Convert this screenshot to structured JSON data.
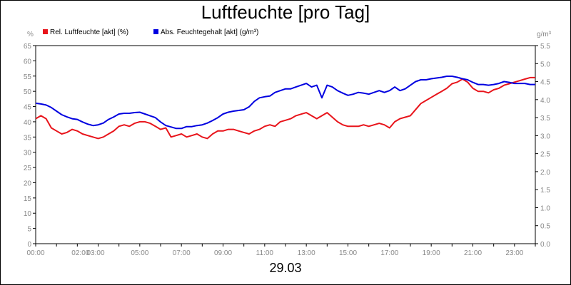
{
  "chart_data": {
    "type": "line",
    "title": "Luftfeuchte [pro Tag]",
    "date_label": "29.03",
    "y_unit_left": "%",
    "y_unit_right": "g/m³",
    "ylim_left": [
      0,
      65
    ],
    "ylim_right": [
      0,
      5.5
    ],
    "y_ticks_left": [
      "0",
      "5",
      "10",
      "15",
      "20",
      "25",
      "30",
      "35",
      "40",
      "45",
      "50",
      "55",
      "60",
      "65"
    ],
    "y_ticks_right": [
      "0.0",
      "0.5",
      "1.0",
      "1.5",
      "2.0",
      "2.5",
      "3.0",
      "3.5",
      "4.0",
      "4.5",
      "5.0",
      "5.5"
    ],
    "x_ticks": [
      {
        "h": 0,
        "label": "00:00"
      },
      {
        "h": 2,
        "label": "02:00"
      },
      {
        "h": 3,
        "label": "03:00"
      },
      {
        "h": 5,
        "label": "05:00"
      },
      {
        "h": 7,
        "label": "07:00"
      },
      {
        "h": 9,
        "label": "09:00"
      },
      {
        "h": 11,
        "label": "11:00"
      },
      {
        "h": 13,
        "label": "13:00"
      },
      {
        "h": 15,
        "label": "15:00"
      },
      {
        "h": 17,
        "label": "17:00"
      },
      {
        "h": 19,
        "label": "19:00"
      },
      {
        "h": 21,
        "label": "21:00"
      },
      {
        "h": 23,
        "label": "23:00"
      }
    ],
    "xlim_hours": [
      0,
      24
    ],
    "grid": false,
    "legend_position": "top-left",
    "series": [
      {
        "name": "Rel. Luftfeuchte [akt] (%)",
        "color": "#e8141b",
        "axis": "left",
        "x": [
          0,
          0.25,
          0.5,
          0.75,
          1,
          1.25,
          1.5,
          1.75,
          2,
          2.25,
          2.5,
          2.75,
          3,
          3.25,
          3.5,
          3.75,
          4,
          4.25,
          4.5,
          4.75,
          5,
          5.25,
          5.5,
          5.75,
          6,
          6.25,
          6.5,
          6.75,
          7,
          7.25,
          7.5,
          7.75,
          8,
          8.25,
          8.5,
          8.75,
          9,
          9.25,
          9.5,
          9.75,
          10,
          10.25,
          10.5,
          10.75,
          11,
          11.25,
          11.5,
          11.75,
          12,
          12.25,
          12.5,
          12.75,
          13,
          13.25,
          13.5,
          13.75,
          14,
          14.25,
          14.5,
          14.75,
          15,
          15.25,
          15.5,
          15.75,
          16,
          16.25,
          16.5,
          16.75,
          17,
          17.25,
          17.5,
          17.75,
          18,
          18.25,
          18.5,
          18.75,
          19,
          19.25,
          19.5,
          19.75,
          20,
          20.25,
          20.5,
          20.75,
          21,
          21.25,
          21.5,
          21.75,
          22,
          22.25,
          22.5,
          22.75,
          23,
          23.25,
          23.5,
          23.75,
          24
        ],
        "values": [
          41,
          42,
          41,
          38,
          37,
          36,
          36.5,
          37.5,
          37,
          36,
          35.5,
          35,
          34.5,
          35,
          36,
          37,
          38.5,
          39,
          38.5,
          39.5,
          40,
          40,
          39.5,
          38.5,
          37.5,
          38,
          35,
          35.5,
          36,
          35,
          35.5,
          36,
          35,
          34.5,
          36,
          37,
          37,
          37.5,
          37.5,
          37,
          36.5,
          36,
          37,
          37.5,
          38.5,
          39,
          38.5,
          40,
          40.5,
          41,
          42,
          42.5,
          43,
          42,
          41,
          42,
          43,
          41.5,
          40,
          39,
          38.5,
          38.5,
          38.5,
          39,
          38.5,
          39,
          39.5,
          39,
          38,
          40,
          41,
          41.5,
          42,
          44,
          46,
          47,
          48,
          49,
          50,
          51,
          52.5,
          53,
          54,
          53,
          51,
          50,
          50,
          49.5,
          50.5,
          51,
          52,
          52.5,
          53,
          53.5,
          54,
          54.5,
          54.5
        ]
      },
      {
        "name": "Abs. Feuchtegehalt [akt] (g/m³)",
        "color": "#0000e0",
        "axis": "right",
        "x": [
          0,
          0.25,
          0.5,
          0.75,
          1,
          1.25,
          1.5,
          1.75,
          2,
          2.25,
          2.5,
          2.75,
          3,
          3.25,
          3.5,
          3.75,
          4,
          4.25,
          4.5,
          4.75,
          5,
          5.25,
          5.5,
          5.75,
          6,
          6.25,
          6.5,
          6.75,
          7,
          7.25,
          7.5,
          7.75,
          8,
          8.25,
          8.5,
          8.75,
          9,
          9.25,
          9.5,
          9.75,
          10,
          10.25,
          10.5,
          10.75,
          11,
          11.25,
          11.5,
          11.75,
          12,
          12.25,
          12.5,
          12.75,
          13,
          13.25,
          13.5,
          13.75,
          14,
          14.25,
          14.5,
          14.75,
          15,
          15.25,
          15.5,
          15.75,
          16,
          16.25,
          16.5,
          16.75,
          17,
          17.25,
          17.5,
          17.75,
          18,
          18.25,
          18.5,
          18.75,
          19,
          19.25,
          19.5,
          19.75,
          20,
          20.25,
          20.5,
          20.75,
          21,
          21.25,
          21.5,
          21.75,
          22,
          22.25,
          22.5,
          22.75,
          23,
          23.25,
          23.5,
          23.75,
          24
        ],
        "values": [
          3.9,
          3.88,
          3.85,
          3.78,
          3.68,
          3.58,
          3.52,
          3.47,
          3.45,
          3.38,
          3.32,
          3.28,
          3.3,
          3.35,
          3.45,
          3.52,
          3.6,
          3.62,
          3.62,
          3.64,
          3.65,
          3.6,
          3.55,
          3.5,
          3.38,
          3.28,
          3.24,
          3.2,
          3.2,
          3.25,
          3.25,
          3.28,
          3.3,
          3.35,
          3.42,
          3.5,
          3.6,
          3.65,
          3.68,
          3.7,
          3.72,
          3.8,
          3.95,
          4.05,
          4.08,
          4.1,
          4.2,
          4.25,
          4.3,
          4.3,
          4.35,
          4.4,
          4.45,
          4.35,
          4.4,
          4.05,
          4.4,
          4.35,
          4.25,
          4.18,
          4.12,
          4.15,
          4.2,
          4.18,
          4.15,
          4.2,
          4.25,
          4.2,
          4.25,
          4.35,
          4.25,
          4.3,
          4.4,
          4.5,
          4.55,
          4.55,
          4.58,
          4.6,
          4.62,
          4.65,
          4.65,
          4.62,
          4.58,
          4.55,
          4.48,
          4.42,
          4.42,
          4.4,
          4.42,
          4.45,
          4.5,
          4.48,
          4.45,
          4.45,
          4.45,
          4.42,
          4.42
        ]
      }
    ]
  }
}
